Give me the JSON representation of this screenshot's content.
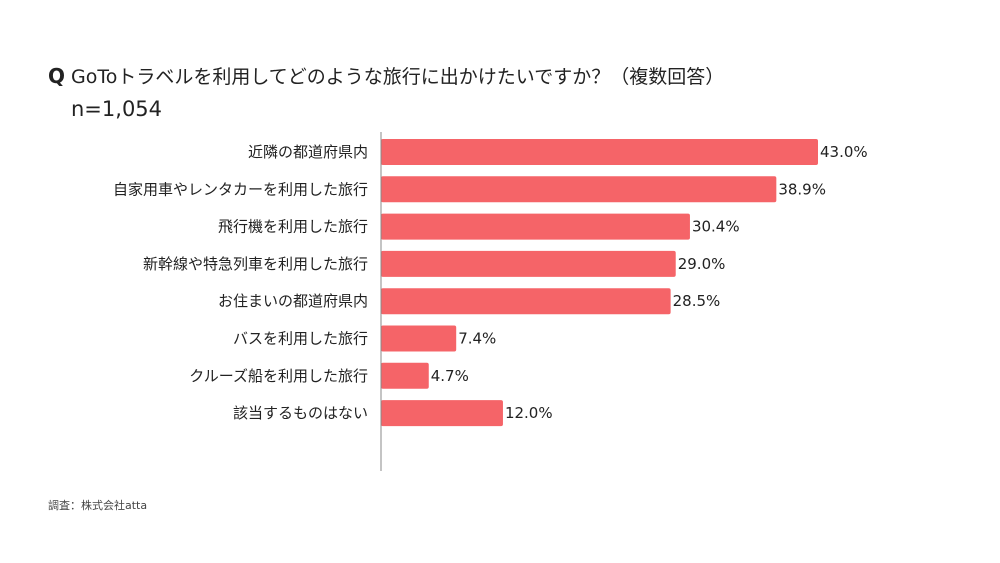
{
  "chart_data": {
    "type": "bar",
    "orientation": "horizontal",
    "title_prefix": "Q",
    "title": "GoToトラベルを利用してどのような旅行に出かけたいですか？（複数回答）",
    "subtitle": "n=1,054",
    "categories": [
      "近隣の都道府県内",
      "自家用車やレンタカーを利用した旅行",
      "飛行機を利用した旅行",
      "新幹線や特急列車を利用した旅行",
      "お住まいの都道府県内",
      "バスを利用した旅行",
      "クルーズ船を利用した旅行",
      "該当するものはない"
    ],
    "values": [
      43.0,
      38.9,
      30.4,
      29.0,
      28.5,
      7.4,
      4.7,
      12.0
    ],
    "value_labels": [
      "43.0%",
      "38.9%",
      "30.4%",
      "29.0%",
      "28.5%",
      "7.4%",
      "4.7%",
      "12.0%"
    ],
    "xlim": [
      0,
      50
    ],
    "unit": "%",
    "bar_color": "#f56468",
    "axis_color": "#888888",
    "grid": false,
    "legend": "none"
  },
  "source": "調査：株式会社atta"
}
